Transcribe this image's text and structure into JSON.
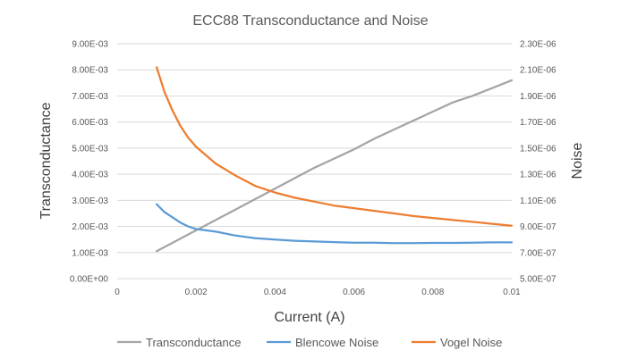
{
  "chart_data": {
    "type": "line",
    "title": "ECC88 Transconductance and Noise",
    "xlabel": "Current  (A)",
    "ylabel_left": "Transconductance",
    "ylabel_right": "Noise",
    "xlim": [
      0,
      0.01
    ],
    "ylim_left": [
      0,
      0.009
    ],
    "ylim_right": [
      5e-07,
      2.3e-06
    ],
    "x_ticks": [
      "0",
      "0.002",
      "0.004",
      "0.006",
      "0.008",
      "0.01"
    ],
    "y_left_ticks": [
      "0.00E+00",
      "1.00E-03",
      "2.00E-03",
      "3.00E-03",
      "4.00E-03",
      "5.00E-03",
      "6.00E-03",
      "7.00E-03",
      "8.00E-03",
      "9.00E-03"
    ],
    "y_right_ticks": [
      "5.00E-07",
      "7.00E-07",
      "9.00E-07",
      "1.10E-06",
      "1.30E-06",
      "1.50E-06",
      "1.70E-06",
      "1.90E-06",
      "2.10E-06",
      "2.30E-06"
    ],
    "grid": "horizontal",
    "legend": "bottom",
    "series": [
      {
        "name": "Transconductance",
        "axis": "left",
        "color": "#a5a5a5",
        "x": [
          0.001,
          0.0015,
          0.002,
          0.0025,
          0.003,
          0.0035,
          0.004,
          0.0045,
          0.005,
          0.0055,
          0.006,
          0.0065,
          0.007,
          0.0075,
          0.008,
          0.0085,
          0.009,
          0.0095,
          0.01
        ],
        "y": [
          0.00105,
          0.00145,
          0.00185,
          0.00225,
          0.00265,
          0.00305,
          0.00345,
          0.00385,
          0.00425,
          0.0046,
          0.00495,
          0.00535,
          0.0057,
          0.00605,
          0.0064,
          0.00675,
          0.007,
          0.0073,
          0.0076
        ]
      },
      {
        "name": "Blencowe Noise",
        "axis": "right",
        "color": "#5b9bd5",
        "x": [
          0.001,
          0.0012,
          0.0014,
          0.0016,
          0.0018,
          0.002,
          0.0025,
          0.003,
          0.0035,
          0.004,
          0.0045,
          0.005,
          0.0055,
          0.006,
          0.0065,
          0.007,
          0.0075,
          0.008,
          0.0085,
          0.009,
          0.0095,
          0.01
        ],
        "y": [
          1.07e-06,
          1.01e-06,
          9.7e-07,
          9.3e-07,
          9e-07,
          8.8e-07,
          8.6e-07,
          8.3e-07,
          8.1e-07,
          8e-07,
          7.9e-07,
          7.85e-07,
          7.8e-07,
          7.75e-07,
          7.75e-07,
          7.72e-07,
          7.72e-07,
          7.74e-07,
          7.74e-07,
          7.76e-07,
          7.78e-07,
          7.78e-07
        ]
      },
      {
        "name": "Vogel Noise",
        "axis": "right",
        "color": "#ed7d31",
        "x": [
          0.001,
          0.0012,
          0.0014,
          0.0016,
          0.0018,
          0.002,
          0.0025,
          0.003,
          0.0035,
          0.004,
          0.0045,
          0.005,
          0.0055,
          0.006,
          0.0065,
          0.007,
          0.0075,
          0.008,
          0.0085,
          0.009,
          0.0095,
          0.01
        ],
        "y": [
          2.12e-06,
          1.93e-06,
          1.79e-06,
          1.67e-06,
          1.58e-06,
          1.51e-06,
          1.38e-06,
          1.29e-06,
          1.21e-06,
          1.16e-06,
          1.12e-06,
          1.09e-06,
          1.06e-06,
          1.04e-06,
          1.02e-06,
          1e-06,
          9.8e-07,
          9.65e-07,
          9.5e-07,
          9.35e-07,
          9.2e-07,
          9.05e-07
        ]
      }
    ]
  }
}
